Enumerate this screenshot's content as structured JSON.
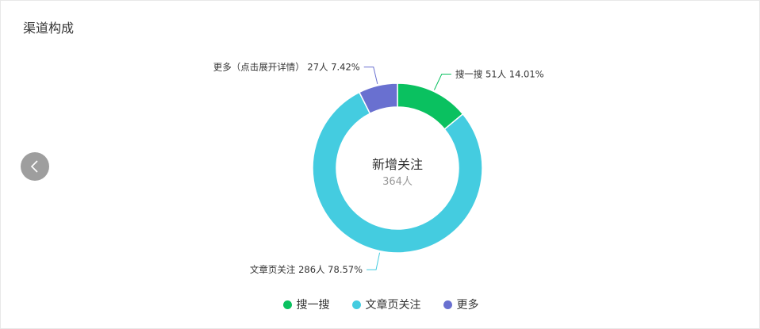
{
  "header": {
    "title": "渠道构成"
  },
  "nav": {
    "prev_icon": "chevron-left-icon"
  },
  "chart_data": {
    "type": "pie",
    "variant": "donut",
    "center_title": "新增关注",
    "center_value": "364人",
    "total": 364,
    "slices": [
      {
        "name": "搜一搜",
        "value": 51,
        "percent": 14.01,
        "color": "#0ac160",
        "callout": "搜一搜 51人 14.01%"
      },
      {
        "name": "文章页关注",
        "value": 286,
        "percent": 78.57,
        "color": "#44cce0",
        "callout": "文章页关注 286人 78.57%"
      },
      {
        "name": "更多（点击展开详情）",
        "value": 27,
        "percent": 7.42,
        "color": "#6970d0",
        "callout": "更多（点击展开详情） 27人 7.42%"
      }
    ],
    "legend": {
      "position": "bottom",
      "items": [
        {
          "label": "搜一搜",
          "color": "#0ac160"
        },
        {
          "label": "文章页关注",
          "color": "#44cce0"
        },
        {
          "label": "更多",
          "color": "#6970d0"
        }
      ]
    }
  }
}
